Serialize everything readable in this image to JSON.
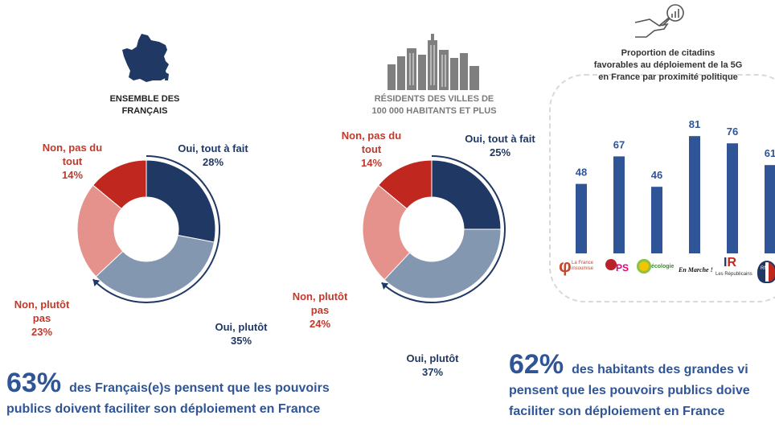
{
  "colors": {
    "oui_tout_a_fait": "#1f3864",
    "oui_plutot": "#8497b0",
    "non_plutot_pas": "#e6928c",
    "non_pas_du_tout": "#c0281f",
    "bar": "#2f5597",
    "accent_text": "#2f5597"
  },
  "left": {
    "caption_line1": "ENSEMBLE DES",
    "caption_line2": "FRANÇAIS",
    "labels": {
      "oui_tout_a_fait": "Oui, tout à fait",
      "oui_tout_a_fait_pct": "28%",
      "oui_plutot": "Oui, plutôt",
      "oui_plutot_pct": "35%",
      "non_plutot_pas_1": "Non, plutôt",
      "non_plutot_pas_2": "pas",
      "non_plutot_pas_pct": "23%",
      "non_pas_du_tout_1": "Non, pas du",
      "non_pas_du_tout_2": "tout",
      "non_pas_du_tout_pct": "14%"
    },
    "headline_pct": "63%",
    "headline_line1": "des Français(e)s pensent que les pouvoirs",
    "headline_line2": "publics doivent faciliter son déploiement en France"
  },
  "middle": {
    "caption_line1": "RÉSIDENTS DES VILLES DE",
    "caption_line2": "100 000 HABITANTS ET PLUS",
    "labels": {
      "oui_tout_a_fait": "Oui, tout à fait",
      "oui_tout_a_fait_pct": "25%",
      "oui_plutot": "Oui, plutôt",
      "oui_plutot_pct": "37%",
      "non_plutot_pas_1": "Non, plutôt",
      "non_plutot_pas_2": "pas",
      "non_plutot_pas_pct": "24%",
      "non_pas_du_tout_1": "Non, pas du",
      "non_pas_du_tout_2": "tout",
      "non_pas_du_tout_pct": "14%"
    },
    "headline_pct": "62%",
    "headline_line1": "des habitants des grandes vi",
    "headline_line2": "pensent que les pouvoirs publics doive",
    "headline_line3": "faciliter son déploiement en France"
  },
  "right": {
    "title_line1": "Proportion de citadins",
    "title_line2": "favorables au déploiement de la 5G",
    "title_line3": "en France par proximité politique",
    "party_labels": [
      "La France insoumise",
      "PS",
      "écologie",
      "En Marche !",
      "Les Républicains",
      "RN"
    ]
  },
  "chart_data": [
    {
      "type": "pie",
      "title": "ENSEMBLE DES FRANÇAIS",
      "categories": [
        "Oui, tout à fait",
        "Oui, plutôt",
        "Non, plutôt pas",
        "Non, pas du tout"
      ],
      "values": [
        28,
        35,
        23,
        14
      ]
    },
    {
      "type": "pie",
      "title": "RÉSIDENTS DES VILLES DE 100 000 HABITANTS ET PLUS",
      "categories": [
        "Oui, tout à fait",
        "Oui, plutôt",
        "Non, plutôt pas",
        "Non, pas du tout"
      ],
      "values": [
        25,
        37,
        24,
        14
      ]
    },
    {
      "type": "bar",
      "title": "Proportion de citadins favorables au déploiement de la 5G en France par proximité politique",
      "categories": [
        "La France insoumise",
        "PS",
        "Europe Écologie",
        "En Marche !",
        "Les Républicains",
        "RN"
      ],
      "values": [
        48,
        67,
        46,
        81,
        76,
        61
      ],
      "ylim": [
        0,
        100
      ]
    }
  ]
}
